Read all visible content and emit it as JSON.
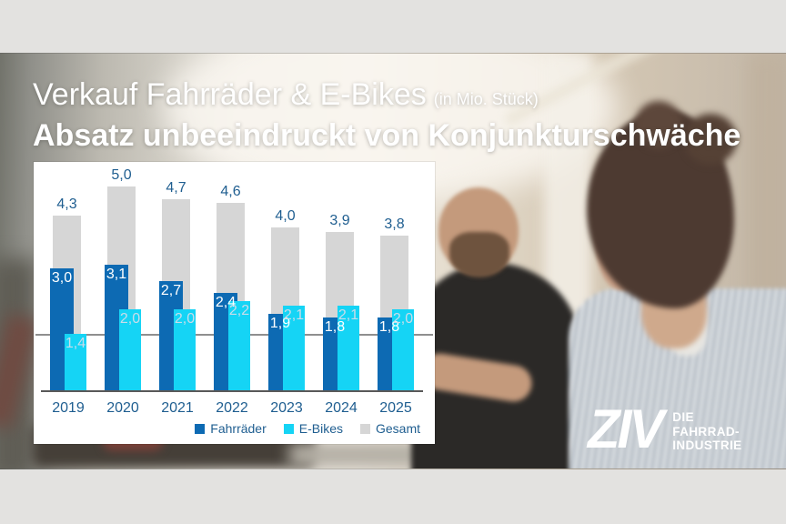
{
  "title": {
    "line1": "Verkauf Fahrräder & E-Bikes",
    "line1_suffix": "(in Mio. Stück)",
    "line2": "Absatz unbeeindruckt von Konjunkturschwäche"
  },
  "logo": {
    "brand": "ZIV",
    "tagline_lines": [
      "DIE",
      "FAHRRAD-",
      "INDUSTRIE"
    ]
  },
  "chart_data": {
    "type": "bar",
    "title": "Verkauf Fahrräder & E-Bikes (in Mio. Stück)",
    "categories": [
      "2019",
      "2020",
      "2021",
      "2022",
      "2023",
      "2024",
      "2025"
    ],
    "series": [
      {
        "name": "Fahrräder",
        "color": "#0d6ab3",
        "values": [
          3.0,
          3.1,
          2.7,
          2.4,
          1.9,
          1.8,
          1.8
        ],
        "labels": [
          "3,0",
          "3,1",
          "2,7",
          "2,4",
          "1,9",
          "1,8",
          "1,8"
        ]
      },
      {
        "name": "E-Bikes",
        "color": "#15d4f5",
        "values": [
          1.4,
          2.0,
          2.0,
          2.2,
          2.1,
          2.1,
          2.0
        ],
        "labels": [
          "1,4",
          "2,0",
          "2,0",
          "2,2",
          "2,1",
          "2,1",
          "2,0"
        ]
      },
      {
        "name": "Gesamt",
        "color": "#d6d6d6",
        "values": [
          4.3,
          5.0,
          4.7,
          4.6,
          4.0,
          3.9,
          3.8
        ],
        "labels": [
          "4,3",
          "5,0",
          "4,7",
          "4,6",
          "4,0",
          "3,9",
          "3,8"
        ]
      }
    ],
    "ylim": [
      0,
      5.6
    ],
    "reference_line": 1.4,
    "grid": "off",
    "legend_position": "bottom",
    "label_color": "#1f5e90",
    "inside_label_colors": {
      "Fahrräder": "#ffffff",
      "E-Bikes": "#c9dcea"
    }
  }
}
